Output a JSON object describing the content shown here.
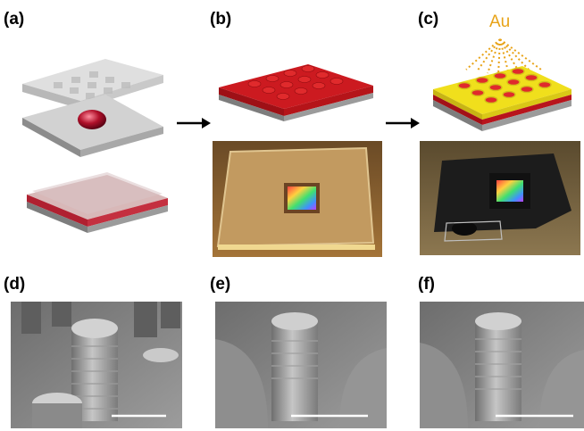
{
  "panels": {
    "a": {
      "label": "(a)"
    },
    "b": {
      "label": "(b)"
    },
    "c": {
      "label": "(c)",
      "deposition_label": "Au"
    },
    "d": {
      "label": "(d)"
    },
    "e": {
      "label": "(e)"
    },
    "f": {
      "label": "(f)"
    }
  },
  "colors": {
    "gold": "#e8a317",
    "resin_red": "#c8141c",
    "substrate_gray": "#9a9a9a",
    "sem_gray": "#8a8a8a",
    "scale_bar": "#ffffff"
  },
  "icons": {
    "arrow_a_to_b": "right-arrow-icon",
    "arrow_b_to_c": "right-arrow-icon"
  }
}
